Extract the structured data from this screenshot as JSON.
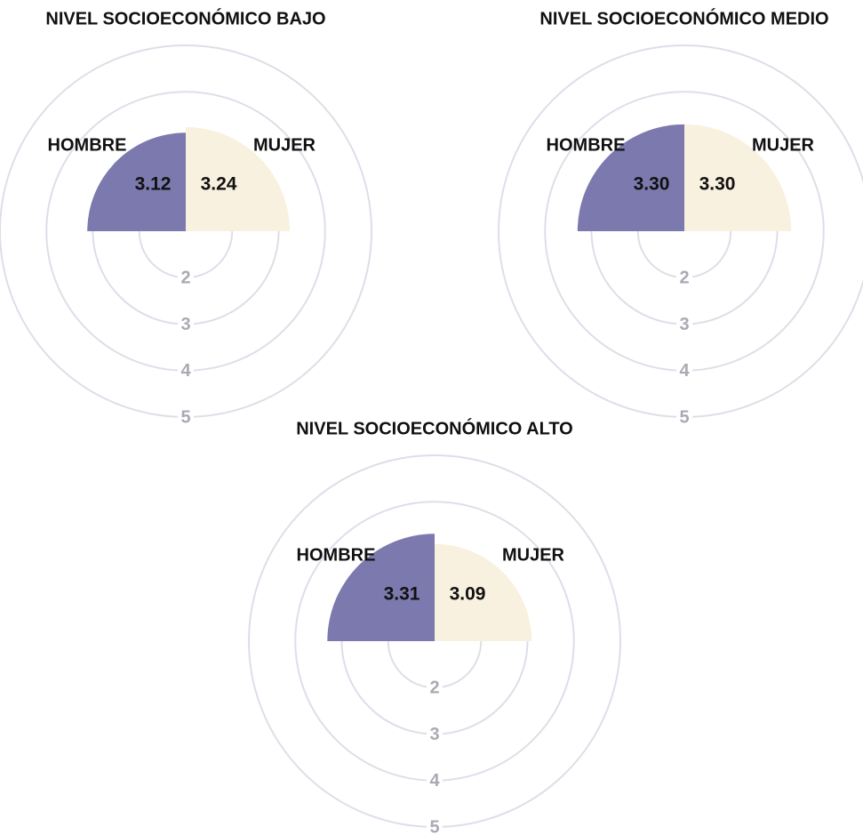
{
  "chart_data": [
    {
      "type": "polar",
      "title": "NIVEL SOCIOECONÓMICO BAJO",
      "categories": [
        "HOMBRE",
        "MUJER"
      ],
      "values": [
        3.12,
        3.24
      ],
      "colors": [
        "#7b79ad",
        "#f9f1df"
      ],
      "rlim": [
        1,
        5
      ],
      "rticks": [
        2,
        3,
        4,
        5
      ]
    },
    {
      "type": "polar",
      "title": "NIVEL SOCIOECONÓMICO MEDIO",
      "categories": [
        "HOMBRE",
        "MUJER"
      ],
      "values": [
        3.3,
        3.3
      ],
      "value_labels": [
        "3.30",
        "3.30"
      ],
      "colors": [
        "#7b79ad",
        "#f9f1df"
      ],
      "rlim": [
        1,
        5
      ],
      "rticks": [
        2,
        3,
        4,
        5
      ]
    },
    {
      "type": "polar",
      "title": "NIVEL SOCIOECONÓMICO ALTO",
      "categories": [
        "HOMBRE",
        "MUJER"
      ],
      "values": [
        3.31,
        3.09
      ],
      "colors": [
        "#7b79ad",
        "#f9f1df"
      ],
      "rlim": [
        1,
        5
      ],
      "rticks": [
        2,
        3,
        4,
        5
      ]
    }
  ]
}
